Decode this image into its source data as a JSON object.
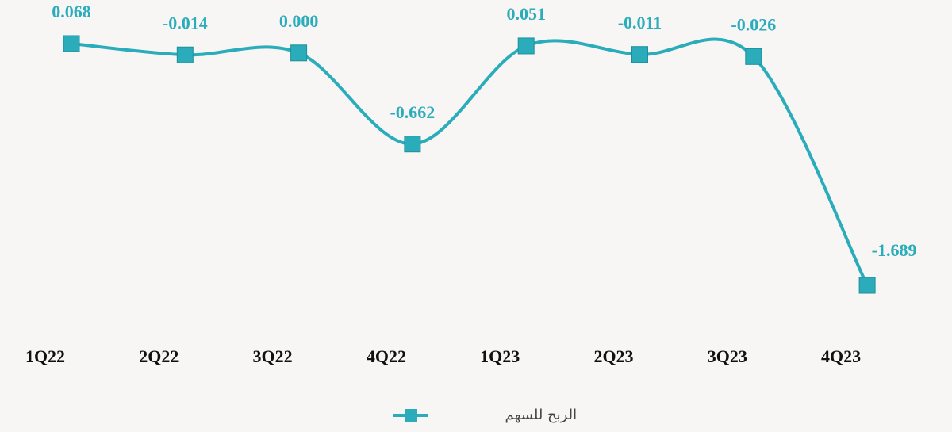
{
  "chart_data": {
    "type": "line",
    "categories": [
      "1Q22",
      "2Q22",
      "3Q22",
      "4Q22",
      "1Q23",
      "2Q23",
      "3Q23",
      "4Q23"
    ],
    "series": [
      {
        "name": "الربح للسهم",
        "color": "#2aacbb",
        "values": [
          0.068,
          -0.014,
          0.0,
          -0.662,
          0.051,
          -0.011,
          -0.026,
          -1.689
        ],
        "value_labels": [
          "0.068",
          "-0.014",
          "0.000",
          "-0.662",
          "0.051",
          "-0.011",
          "-0.026",
          "-1.689"
        ]
      }
    ],
    "legend": "bottom"
  }
}
